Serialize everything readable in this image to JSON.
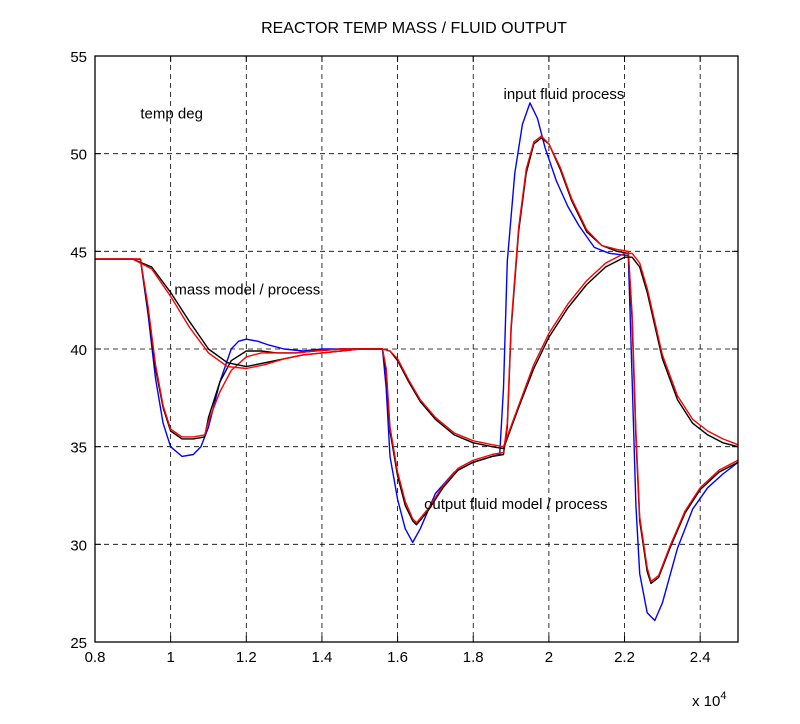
{
  "chart_data": {
    "type": "line",
    "title": "REACTOR TEMP MASS  / FLUID OUTPUT",
    "xlabel": "",
    "ylabel": "",
    "x_multiplier_label": "x 10^4",
    "xlim": [
      0.8,
      2.5
    ],
    "ylim": [
      25,
      55
    ],
    "xticks": [
      0.8,
      1,
      1.2,
      1.4,
      1.6,
      1.8,
      2,
      2.2,
      2.4
    ],
    "xtick_labels": [
      "0.8",
      "1",
      "1.2",
      "1.4",
      "1.6",
      "1.8",
      "2",
      "2.2",
      "2.4"
    ],
    "yticks": [
      25,
      30,
      35,
      40,
      45,
      50,
      55
    ],
    "ytick_labels": [
      "25",
      "30",
      "35",
      "40",
      "45",
      "50",
      "55"
    ],
    "grid": true,
    "annotations": [
      {
        "text": "temp deg",
        "x": 0.92,
        "y": 51.8
      },
      {
        "text": "input fluid process",
        "x": 1.88,
        "y": 52.8
      },
      {
        "text": "mass model / process",
        "x": 1.01,
        "y": 42.8
      },
      {
        "text": "output fluid model / process",
        "x": 1.67,
        "y": 31.8
      }
    ],
    "series": [
      {
        "color": "#0000ff",
        "x": [
          0.8,
          0.9,
          0.92,
          0.94,
          0.96,
          0.98,
          1.0,
          1.03,
          1.06,
          1.08,
          1.1,
          1.13,
          1.16,
          1.18,
          1.2,
          1.23,
          1.26,
          1.3,
          1.35,
          1.4,
          1.5,
          1.56,
          1.57,
          1.58,
          1.6,
          1.62,
          1.64,
          1.66,
          1.7,
          1.75,
          1.8,
          1.85,
          1.87,
          1.88,
          1.89,
          1.91,
          1.93,
          1.95,
          1.97,
          1.99,
          2.02,
          2.05,
          2.08,
          2.12,
          2.16,
          2.2,
          2.21,
          2.22,
          2.23,
          2.24,
          2.26,
          2.28,
          2.3,
          2.34,
          2.38,
          2.42,
          2.46,
          2.5
        ],
        "y": [
          44.6,
          44.6,
          44.6,
          41.8,
          38.5,
          36.2,
          35.0,
          34.5,
          34.6,
          35.0,
          36.0,
          38.3,
          40.0,
          40.4,
          40.5,
          40.4,
          40.2,
          40.0,
          39.9,
          40.0,
          40.0,
          40.0,
          38.0,
          34.5,
          32.3,
          30.8,
          30.1,
          30.8,
          32.6,
          33.7,
          34.2,
          34.5,
          34.6,
          38.0,
          44.5,
          49.0,
          51.5,
          52.6,
          51.8,
          50.3,
          48.6,
          47.3,
          46.3,
          45.2,
          44.9,
          44.8,
          44.8,
          38.5,
          32.0,
          28.5,
          26.5,
          26.1,
          27.0,
          29.8,
          31.8,
          32.9,
          33.6,
          34.2
        ]
      },
      {
        "color": "#000000",
        "x": [
          0.8,
          0.92,
          0.94,
          0.96,
          0.98,
          1.0,
          1.03,
          1.06,
          1.09,
          1.1,
          1.13,
          1.16,
          1.2,
          1.24,
          1.28,
          1.33,
          1.38,
          1.45,
          1.56,
          1.57,
          1.58,
          1.6,
          1.62,
          1.64,
          1.65,
          1.68,
          1.72,
          1.76,
          1.8,
          1.85,
          1.88,
          1.89,
          1.9,
          1.92,
          1.94,
          1.96,
          1.98,
          2.0,
          2.03,
          2.06,
          2.1,
          2.14,
          2.18,
          2.21,
          2.22,
          2.23,
          2.24,
          2.26,
          2.27,
          2.29,
          2.32,
          2.36,
          2.4,
          2.45,
          2.5
        ],
        "y": [
          44.6,
          44.6,
          42.0,
          39.0,
          37.0,
          35.8,
          35.4,
          35.4,
          35.5,
          36.5,
          38.3,
          39.4,
          39.9,
          39.9,
          39.8,
          39.8,
          39.9,
          40.0,
          40.0,
          38.8,
          35.8,
          33.5,
          32.0,
          31.2,
          31.0,
          31.7,
          32.9,
          33.8,
          34.2,
          34.5,
          34.6,
          36.0,
          41.0,
          46.0,
          49.0,
          50.5,
          50.8,
          50.5,
          49.2,
          47.6,
          46.0,
          45.3,
          45.0,
          44.9,
          41.5,
          35.5,
          31.2,
          28.6,
          28.0,
          28.3,
          29.8,
          31.6,
          32.8,
          33.7,
          34.2
        ]
      },
      {
        "color": "#ff0000",
        "x": [
          0.8,
          0.92,
          0.94,
          0.96,
          0.98,
          1.0,
          1.03,
          1.06,
          1.09,
          1.1,
          1.13,
          1.16,
          1.2,
          1.24,
          1.28,
          1.33,
          1.38,
          1.45,
          1.56,
          1.57,
          1.58,
          1.6,
          1.62,
          1.64,
          1.65,
          1.68,
          1.72,
          1.76,
          1.8,
          1.85,
          1.88,
          1.89,
          1.9,
          1.92,
          1.94,
          1.96,
          1.98,
          2.0,
          2.03,
          2.06,
          2.1,
          2.14,
          2.18,
          2.21,
          2.22,
          2.23,
          2.24,
          2.26,
          2.27,
          2.29,
          2.32,
          2.36,
          2.4,
          2.45,
          2.5
        ],
        "y": [
          44.6,
          44.6,
          42.2,
          39.2,
          37.1,
          35.9,
          35.5,
          35.5,
          35.6,
          36.3,
          37.8,
          38.9,
          39.6,
          39.8,
          39.8,
          39.8,
          39.9,
          40.0,
          40.0,
          39.0,
          36.0,
          33.7,
          32.2,
          31.3,
          31.1,
          31.8,
          33.0,
          33.9,
          34.3,
          34.6,
          34.7,
          36.2,
          41.2,
          46.2,
          49.2,
          50.6,
          50.9,
          50.5,
          49.3,
          47.7,
          46.1,
          45.3,
          45.1,
          45.0,
          41.8,
          35.8,
          31.4,
          28.8,
          28.1,
          28.4,
          29.9,
          31.7,
          32.9,
          33.8,
          34.3
        ]
      },
      {
        "color": "#000000",
        "x": [
          0.8,
          0.9,
          0.95,
          1.0,
          1.05,
          1.1,
          1.15,
          1.2,
          1.25,
          1.3,
          1.35,
          1.4,
          1.45,
          1.5,
          1.56,
          1.58,
          1.6,
          1.63,
          1.66,
          1.7,
          1.75,
          1.8,
          1.85,
          1.88,
          1.92,
          1.96,
          2.0,
          2.05,
          2.1,
          2.15,
          2.2,
          2.22,
          2.24,
          2.26,
          2.28,
          2.3,
          2.34,
          2.38,
          2.42,
          2.46,
          2.5
        ],
        "y": [
          44.6,
          44.6,
          44.2,
          42.9,
          41.4,
          40.0,
          39.3,
          39.1,
          39.3,
          39.5,
          39.7,
          39.8,
          39.9,
          40.0,
          40.0,
          39.9,
          39.4,
          38.3,
          37.3,
          36.4,
          35.6,
          35.2,
          35.0,
          34.9,
          37.0,
          39.0,
          40.6,
          42.1,
          43.3,
          44.2,
          44.7,
          44.7,
          44.2,
          42.9,
          41.2,
          39.5,
          37.4,
          36.2,
          35.6,
          35.2,
          35.0
        ]
      },
      {
        "color": "#ff0000",
        "x": [
          0.8,
          0.9,
          0.95,
          1.0,
          1.05,
          1.1,
          1.15,
          1.2,
          1.25,
          1.3,
          1.35,
          1.4,
          1.45,
          1.5,
          1.56,
          1.58,
          1.6,
          1.63,
          1.66,
          1.7,
          1.75,
          1.8,
          1.85,
          1.88,
          1.92,
          1.96,
          2.0,
          2.05,
          2.1,
          2.15,
          2.2,
          2.22,
          2.24,
          2.26,
          2.28,
          2.3,
          2.34,
          2.38,
          2.42,
          2.46,
          2.5
        ],
        "y": [
          44.6,
          44.6,
          44.1,
          42.7,
          41.1,
          39.8,
          39.1,
          39.0,
          39.2,
          39.5,
          39.7,
          39.8,
          39.9,
          40.0,
          40.0,
          39.9,
          39.5,
          38.4,
          37.4,
          36.5,
          35.7,
          35.3,
          35.1,
          35.0,
          37.1,
          39.2,
          40.8,
          42.3,
          43.5,
          44.4,
          44.9,
          44.9,
          44.4,
          43.1,
          41.4,
          39.7,
          37.6,
          36.4,
          35.8,
          35.4,
          35.1
        ]
      }
    ]
  }
}
